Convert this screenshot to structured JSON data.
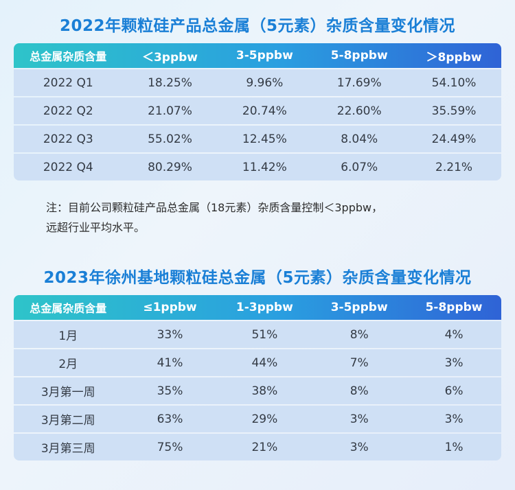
{
  "table1": {
    "title": "2022年颗粒硅产品总金属（5元素）杂质含量变化情况",
    "headers": [
      "总金属杂质含量",
      "＜3ppbw",
      "3-5ppbw",
      "5-8ppbw",
      "＞8ppbw"
    ],
    "rows": [
      [
        "2022 Q1",
        "18.25%",
        "9.96%",
        "17.69%",
        "54.10%"
      ],
      [
        "2022 Q2",
        "21.07%",
        "20.74%",
        "22.60%",
        "35.59%"
      ],
      [
        "2022 Q3",
        "55.02%",
        "12.45%",
        "8.04%",
        "24.49%"
      ],
      [
        "2022 Q4",
        "80.29%",
        "11.42%",
        "6.07%",
        "2.21%"
      ]
    ]
  },
  "note": {
    "line1": "注：目前公司颗粒硅产品总金属（18元素）杂质含量控制＜3ppbw，",
    "line2": "远超行业平均水平。"
  },
  "table2": {
    "title": "2023年徐州基地颗粒硅总金属（5元素）杂质含量变化情况",
    "headers": [
      "总金属杂质含量",
      "≤1ppbw",
      "1-3ppbw",
      "3-5ppbw",
      "5-8ppbw"
    ],
    "rows": [
      [
        "1月",
        "33%",
        "51%",
        "8%",
        "4%"
      ],
      [
        "2月",
        "41%",
        "44%",
        "7%",
        "3%"
      ],
      [
        "3月第一周",
        "35%",
        "38%",
        "8%",
        "6%"
      ],
      [
        "3月第二周",
        "63%",
        "29%",
        "3%",
        "3%"
      ],
      [
        "3月第三周",
        "75%",
        "21%",
        "3%",
        "1%"
      ]
    ]
  }
}
